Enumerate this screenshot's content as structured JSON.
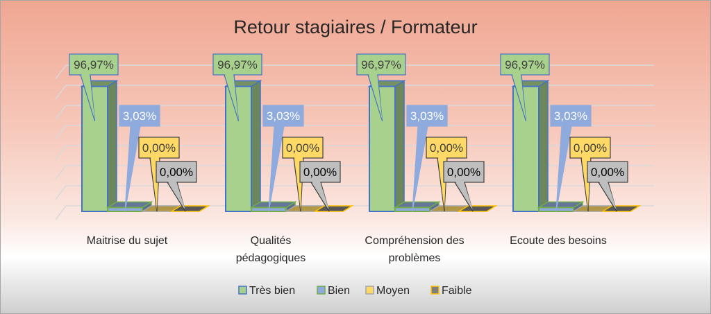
{
  "chart_data": {
    "type": "bar",
    "style": "3d-clustered-column",
    "title": "Retour stagiaires / Formateur",
    "categories": [
      "Maitrise du sujet",
      "Qualités pédagogiques",
      "Compréhension des problèmes",
      "Ecoute des besoins"
    ],
    "category_lines": [
      [
        "Maitrise du sujet"
      ],
      [
        "Qualités",
        "pédagogiques"
      ],
      [
        "Compréhension des",
        "problèmes"
      ],
      [
        "Ecoute des besoins"
      ]
    ],
    "series": [
      {
        "name": "Très bien",
        "values": [
          96.97,
          96.97,
          96.97,
          96.97
        ],
        "labels": [
          "96,97%",
          "96,97%",
          "96,97%",
          "96,97%"
        ],
        "color": "#a9d18e",
        "border": "#4472c4"
      },
      {
        "name": "Bien",
        "values": [
          3.03,
          3.03,
          3.03,
          3.03
        ],
        "labels": [
          "3,03%",
          "3,03%",
          "3,03%",
          "3,03%"
        ],
        "color": "#8faadc",
        "border": "#70ad47"
      },
      {
        "name": "Moyen",
        "values": [
          0,
          0,
          0,
          0
        ],
        "labels": [
          "0,00%",
          "0,00%",
          "0,00%",
          "0,00%"
        ],
        "color": "#ffd966",
        "border": "#a5a5a5"
      },
      {
        "name": "Faible",
        "values": [
          0,
          0,
          0,
          0
        ],
        "labels": [
          "0,00%",
          "0,00%",
          "0,00%",
          "0,00%"
        ],
        "color": "#7f7f7f",
        "border": "#ffc000"
      }
    ],
    "ylim": [
      0,
      100
    ],
    "grid": true,
    "legend": "bottom",
    "data_labels": "callouts"
  }
}
